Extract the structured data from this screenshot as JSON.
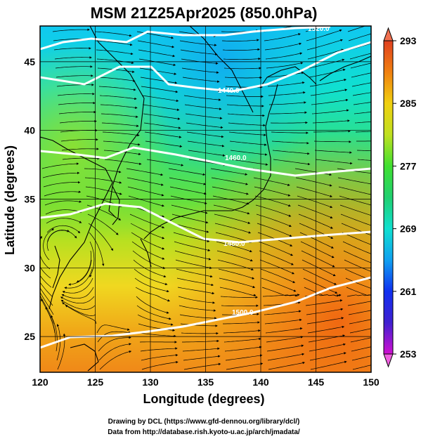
{
  "title": "MSM 21Z25Apr2025 (850.0hPa)",
  "axes": {
    "xlabel": "Longitude (degrees)",
    "ylabel": "Latitude  (degrees)",
    "xlim": [
      120,
      150
    ],
    "ylim": [
      22.4,
      47.6
    ],
    "xticks": [
      "120",
      "125",
      "130",
      "135",
      "140",
      "145",
      "150"
    ],
    "yticks": [
      "25",
      "30",
      "35",
      "40",
      "45"
    ],
    "gridlines": true
  },
  "colorbar": {
    "ticks": [
      "293",
      "285",
      "277",
      "269",
      "261",
      "253"
    ],
    "range": [
      253,
      293
    ],
    "colors": [
      "#d010d0",
      "#4020d0",
      "#1030f0",
      "#10a0f0",
      "#10e0d0",
      "#20d070",
      "#40e030",
      "#c0e020",
      "#f0d010",
      "#f08010",
      "#e04020"
    ]
  },
  "height_contours": [
    {
      "label": "1440.0"
    },
    {
      "label": "1460.0"
    },
    {
      "label": "1480.0"
    },
    {
      "label": "1500.0"
    },
    {
      "label": "1520.0"
    }
  ],
  "credits": {
    "line1": "Drawing by DCL (https://www.gfd-dennou.org/library/dcl/)",
    "line2": "Data from http://database.rish.kyoto-u.ac.jp/arch/jmadata/"
  }
}
